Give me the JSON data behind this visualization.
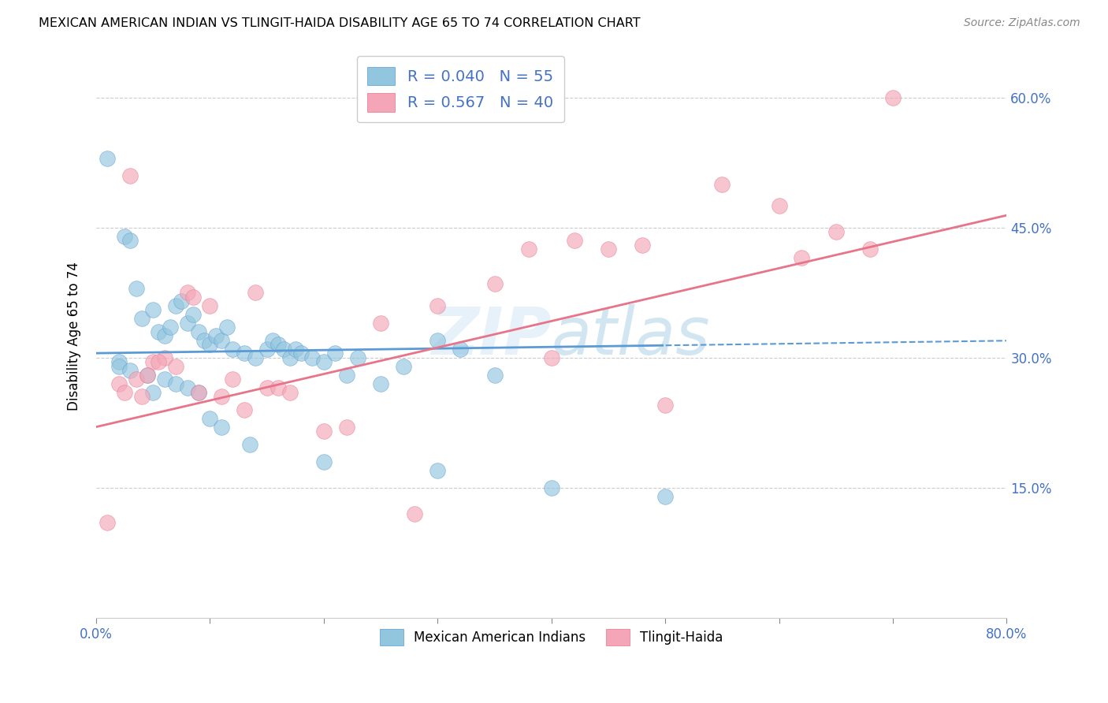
{
  "title": "MEXICAN AMERICAN INDIAN VS TLINGIT-HAIDA DISABILITY AGE 65 TO 74 CORRELATION CHART",
  "source": "Source: ZipAtlas.com",
  "ylabel": "Disability Age 65 to 74",
  "legend_label1": "Mexican American Indians",
  "legend_label2": "Tlingit-Haida",
  "R1": "0.040",
  "N1": "55",
  "R2": "0.567",
  "N2": "40",
  "color_blue": "#92c5de",
  "color_pink": "#f4a6b8",
  "color_blue_line": "#5b9bd5",
  "color_pink_line": "#e8748a",
  "watermark": "ZIPatlas",
  "blue_x": [
    1.0,
    2.5,
    3.0,
    3.5,
    4.0,
    5.0,
    5.5,
    6.0,
    6.5,
    7.0,
    7.5,
    8.0,
    8.5,
    9.0,
    9.5,
    10.0,
    10.5,
    11.0,
    11.5,
    12.0,
    13.0,
    14.0,
    15.0,
    15.5,
    16.0,
    16.5,
    17.0,
    17.5,
    18.0,
    19.0,
    20.0,
    21.0,
    22.0,
    23.0,
    25.0,
    27.0,
    30.0,
    32.0,
    35.0,
    2.0,
    2.0,
    3.0,
    4.5,
    5.0,
    6.0,
    7.0,
    8.0,
    9.0,
    10.0,
    11.0,
    13.5,
    20.0,
    30.0,
    40.0,
    50.0
  ],
  "blue_y": [
    53.0,
    44.0,
    43.5,
    38.0,
    34.5,
    35.5,
    33.0,
    32.5,
    33.5,
    36.0,
    36.5,
    34.0,
    35.0,
    33.0,
    32.0,
    31.5,
    32.5,
    32.0,
    33.5,
    31.0,
    30.5,
    30.0,
    31.0,
    32.0,
    31.5,
    31.0,
    30.0,
    31.0,
    30.5,
    30.0,
    29.5,
    30.5,
    28.0,
    30.0,
    27.0,
    29.0,
    32.0,
    31.0,
    28.0,
    29.5,
    29.0,
    28.5,
    28.0,
    26.0,
    27.5,
    27.0,
    26.5,
    26.0,
    23.0,
    22.0,
    20.0,
    18.0,
    17.0,
    15.0,
    14.0
  ],
  "pink_x": [
    1.0,
    2.0,
    3.0,
    4.0,
    5.0,
    6.0,
    7.0,
    8.0,
    9.0,
    10.0,
    11.0,
    12.0,
    13.0,
    15.0,
    16.0,
    17.0,
    20.0,
    22.0,
    28.0,
    30.0,
    35.0,
    40.0,
    42.0,
    45.0,
    48.0,
    50.0,
    55.0,
    60.0,
    62.0,
    65.0,
    70.0,
    3.5,
    5.5,
    8.5,
    2.5,
    4.5,
    14.0,
    25.0,
    38.0,
    68.0
  ],
  "pink_y": [
    11.0,
    27.0,
    51.0,
    25.5,
    29.5,
    30.0,
    29.0,
    37.5,
    26.0,
    36.0,
    25.5,
    27.5,
    24.0,
    26.5,
    26.5,
    26.0,
    21.5,
    22.0,
    12.0,
    36.0,
    38.5,
    30.0,
    43.5,
    42.5,
    43.0,
    24.5,
    50.0,
    47.5,
    41.5,
    44.5,
    60.0,
    27.5,
    29.5,
    37.0,
    26.0,
    28.0,
    37.5,
    34.0,
    42.5,
    42.5
  ],
  "xmin": 0.0,
  "xmax": 80.0,
  "ymin": 0.0,
  "ymax": 65.0,
  "ytick_positions": [
    15.0,
    30.0,
    45.0,
    60.0
  ],
  "xtick_positions": [
    0.0,
    10.0,
    20.0,
    30.0,
    40.0,
    50.0,
    60.0,
    70.0,
    80.0
  ],
  "grid_color": "#cccccc",
  "bg_color": "#ffffff",
  "blue_line_intercept": 30.5,
  "blue_line_slope": 0.018,
  "pink_line_intercept": 22.0,
  "pink_line_slope": 0.305
}
